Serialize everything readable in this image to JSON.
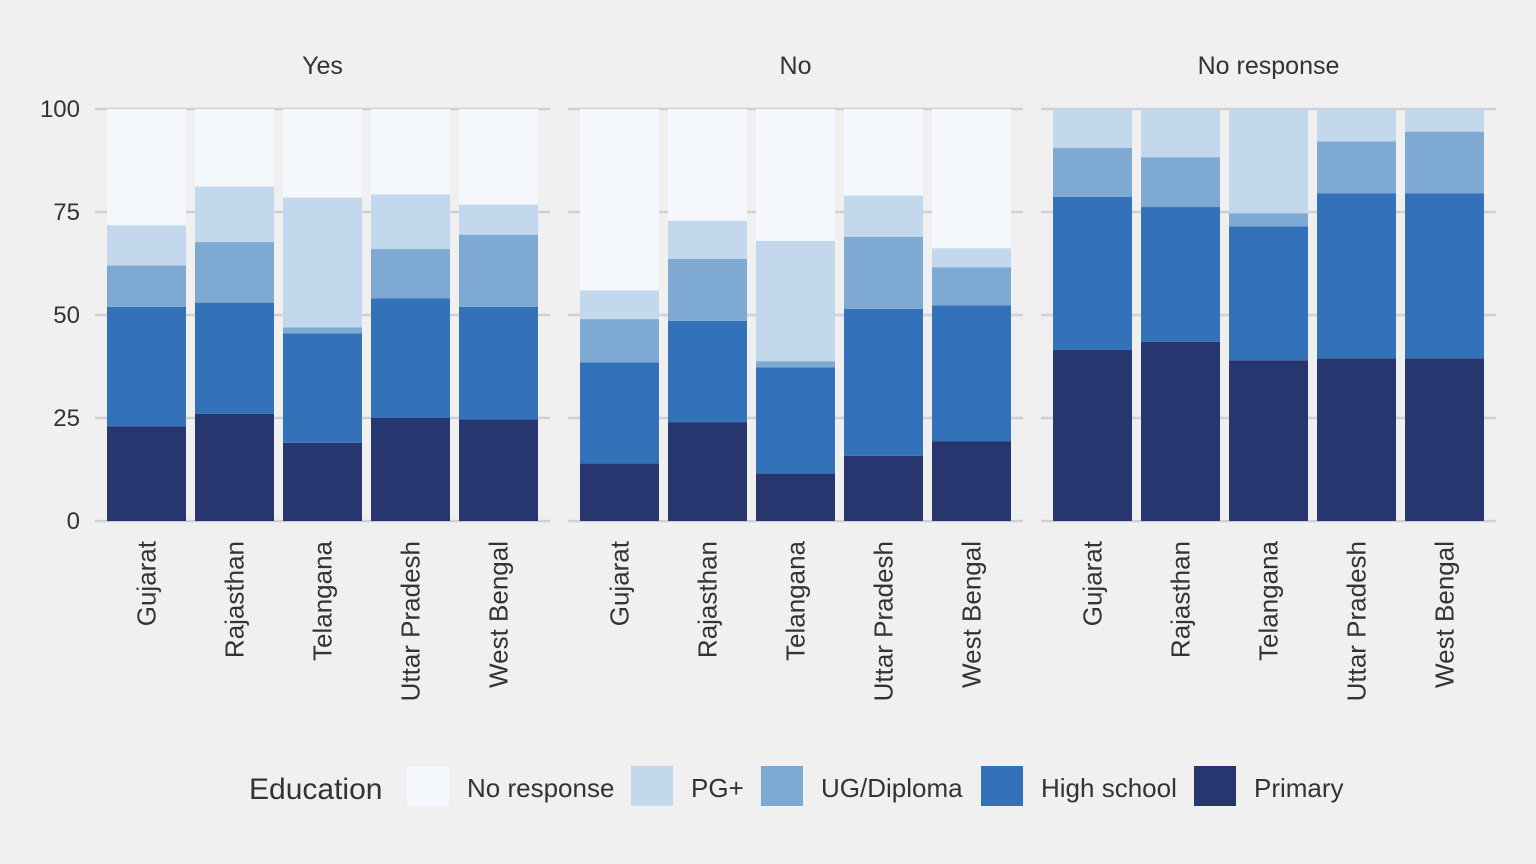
{
  "chart_data": {
    "type": "bar",
    "stacked": true,
    "ylim": [
      0,
      100
    ],
    "yticks": [
      0,
      25,
      50,
      75,
      100
    ],
    "grid": true,
    "legend_position": "bottom",
    "categories": [
      "Gujarat",
      "Rajasthan",
      "Telangana",
      "Uttar Pradesh",
      "West Bengal"
    ],
    "legend": {
      "title": "Education",
      "items": [
        {
          "name": "No response",
          "color": "#f4f8fd"
        },
        {
          "name": "PG+",
          "color": "#c3d8ec"
        },
        {
          "name": "UG/Diploma",
          "color": "#7ea9d3"
        },
        {
          "name": "High school",
          "color": "#3371b8"
        },
        {
          "name": "Primary",
          "color": "#27366f"
        }
      ]
    },
    "facets": [
      {
        "title": "Yes",
        "series": [
          {
            "name": "Primary",
            "values": [
              23,
              26,
              19,
              25,
              24.7
            ]
          },
          {
            "name": "High school",
            "values": [
              29,
              27,
              26.5,
              29,
              27.3
            ]
          },
          {
            "name": "UG/Diploma",
            "values": [
              10,
              14.7,
              1.5,
              12,
              17.5
            ]
          },
          {
            "name": "PG+",
            "values": [
              9.8,
              13.5,
              31.5,
              13.3,
              7.3
            ]
          },
          {
            "name": "No response",
            "values": [
              28.2,
              18.8,
              21.5,
              20.7,
              23.2
            ]
          }
        ]
      },
      {
        "title": "No",
        "series": [
          {
            "name": "Primary",
            "values": [
              14,
              24,
              11.5,
              15.8,
              19.3
            ]
          },
          {
            "name": "High school",
            "values": [
              24.5,
              24.6,
              25.8,
              35.7,
              33
            ]
          },
          {
            "name": "UG/Diploma",
            "values": [
              10.5,
              15,
              1.5,
              17.5,
              9.3
            ]
          },
          {
            "name": "PG+",
            "values": [
              7,
              9.3,
              29.2,
              10,
              4.6
            ]
          },
          {
            "name": "No response",
            "values": [
              44,
              27.1,
              32,
              21,
              33.8
            ]
          }
        ]
      },
      {
        "title": "No response",
        "series": [
          {
            "name": "Primary",
            "values": [
              41.5,
              43.5,
              39,
              39.5,
              39.5
            ]
          },
          {
            "name": "High school",
            "values": [
              37.2,
              32.7,
              32.5,
              40,
              40
            ]
          },
          {
            "name": "UG/Diploma",
            "values": [
              11.9,
              12.1,
              3.2,
              12.6,
              15
            ]
          },
          {
            "name": "PG+",
            "values": [
              9.4,
              11.7,
              25.3,
              7.9,
              5.5
            ]
          },
          {
            "name": "No response",
            "values": [
              0,
              0,
              0,
              0,
              0
            ]
          }
        ]
      }
    ]
  }
}
